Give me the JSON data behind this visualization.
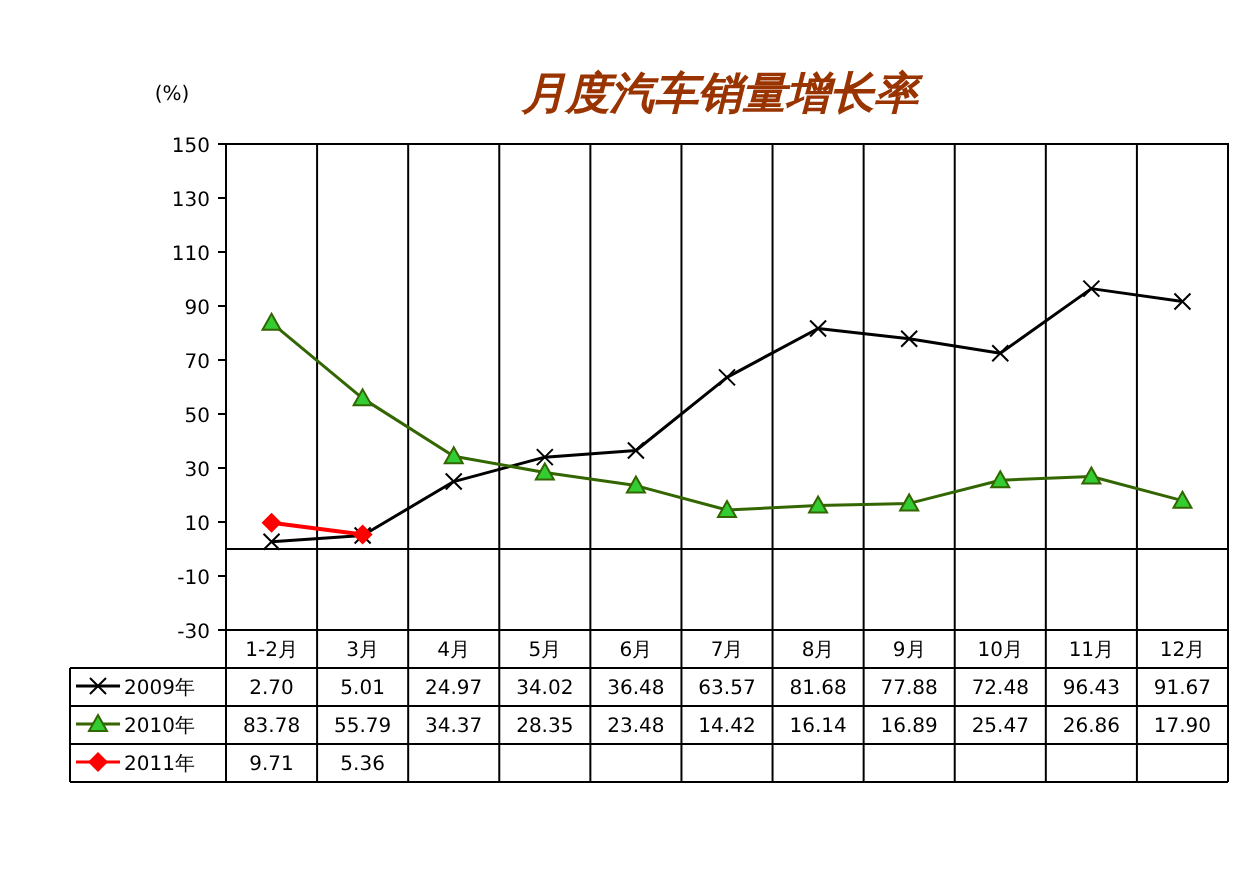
{
  "chart_data": {
    "type": "line",
    "title": "月度汽车销量增长率",
    "ylabel": "(%)",
    "categories": [
      "1-2月",
      "3月",
      "4月",
      "5月",
      "6月",
      "7月",
      "8月",
      "9月",
      "10月",
      "11月",
      "12月"
    ],
    "ylim": [
      -30,
      150
    ],
    "yticks": [
      -30,
      -10,
      10,
      30,
      50,
      70,
      90,
      110,
      130,
      150
    ],
    "grid": "x",
    "legend": "bottom",
    "series": [
      {
        "name": "2009年",
        "color": "#000000",
        "marker": "cross",
        "values": [
          2.7,
          5.01,
          24.97,
          34.02,
          36.48,
          63.57,
          81.68,
          77.88,
          72.48,
          96.43,
          91.67
        ],
        "value_labels": [
          "2.70",
          "5.01",
          "24.97",
          "34.02",
          "36.48",
          "63.57",
          "81.68",
          "77.88",
          "72.48",
          "96.43",
          "91.67"
        ]
      },
      {
        "name": "2010年",
        "color": "#336600",
        "marker": "triangle",
        "values": [
          83.78,
          55.79,
          34.37,
          28.35,
          23.48,
          14.42,
          16.14,
          16.89,
          25.47,
          26.86,
          17.9
        ],
        "value_labels": [
          "83.78",
          "55.79",
          "34.37",
          "28.35",
          "23.48",
          "14.42",
          "16.14",
          "16.89",
          "25.47",
          "26.86",
          "17.90"
        ]
      },
      {
        "name": "2011年",
        "color": "#ff0000",
        "marker": "diamond",
        "values": [
          9.71,
          5.36,
          null,
          null,
          null,
          null,
          null,
          null,
          null,
          null,
          null
        ],
        "value_labels": [
          "9.71",
          "5.36",
          null,
          null,
          null,
          null,
          null,
          null,
          null,
          null,
          null
        ]
      }
    ]
  }
}
